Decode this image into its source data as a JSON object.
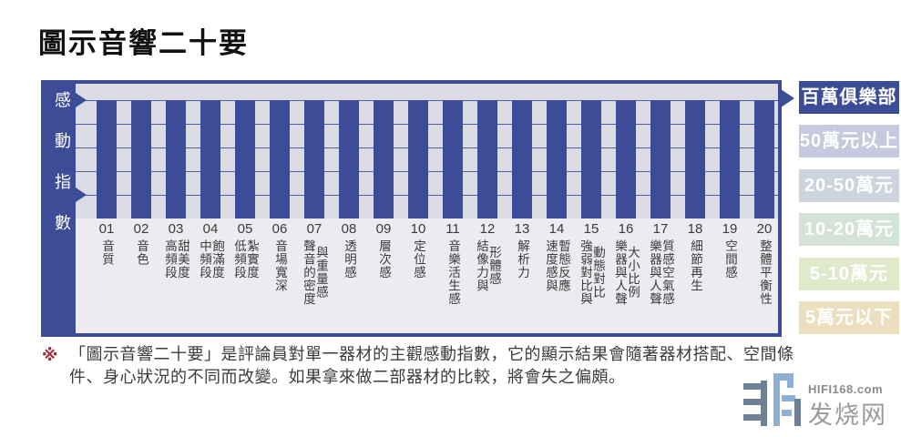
{
  "title": "圖示音響二十要",
  "chart": {
    "axis_label": "感動指數",
    "bars": [
      {
        "num": "01",
        "cols": [
          "音質"
        ]
      },
      {
        "num": "02",
        "cols": [
          "音色"
        ]
      },
      {
        "num": "03",
        "cols": [
          "高頻段",
          "甜美度"
        ]
      },
      {
        "num": "04",
        "cols": [
          "中頻段",
          "飽滿度"
        ]
      },
      {
        "num": "05",
        "cols": [
          "低頻段",
          "紮實度"
        ]
      },
      {
        "num": "06",
        "cols": [
          "音場寬深"
        ]
      },
      {
        "num": "07",
        "cols": [
          "聲音的密度",
          "與重量感"
        ]
      },
      {
        "num": "08",
        "cols": [
          "透明感"
        ]
      },
      {
        "num": "09",
        "cols": [
          "層次感"
        ]
      },
      {
        "num": "10",
        "cols": [
          "定位感"
        ]
      },
      {
        "num": "11",
        "cols": [
          "音樂活生感"
        ]
      },
      {
        "num": "12",
        "cols": [
          "結像力與",
          "形體感"
        ]
      },
      {
        "num": "13",
        "cols": [
          "解析力"
        ]
      },
      {
        "num": "14",
        "cols": [
          "速度感與",
          "暫態反應"
        ]
      },
      {
        "num": "15",
        "cols": [
          "強弱對比與",
          "動態對比"
        ]
      },
      {
        "num": "16",
        "cols": [
          "樂器與人聲",
          "大小比例"
        ]
      },
      {
        "num": "17",
        "cols": [
          "樂器與人聲",
          "質感空氣感"
        ]
      },
      {
        "num": "18",
        "cols": [
          "細節再生"
        ]
      },
      {
        "num": "19",
        "cols": [
          "空間感"
        ]
      },
      {
        "num": "20",
        "cols": [
          "整體平衡性"
        ]
      }
    ]
  },
  "tiers": [
    {
      "label": "百萬俱樂部",
      "bg": "#3c4c96",
      "active": true
    },
    {
      "label": "50萬元以上",
      "bg": "#c7cade",
      "active": false
    },
    {
      "label": "20-50萬元",
      "bg": "#ccd4dd",
      "active": false
    },
    {
      "label": "10-20萬元",
      "bg": "#d3e3d7",
      "active": false
    },
    {
      "label": "5-10萬元",
      "bg": "#e0e9ca",
      "active": false
    },
    {
      "label": "5萬元以下",
      "bg": "#ecdfc0",
      "active": false
    }
  ],
  "footnote": {
    "marker": "※",
    "lines": [
      "「圖示音響二十要」是評論員對單一器材的主觀感動指數，它的顯示結果會隨著器材搭配、空間條",
      "件、身心狀況的不同而改變。如果拿來做二部器材的比較，將會失之偏頗。"
    ]
  },
  "watermark": {
    "site": "HIFI168.com",
    "brand": "发烧网"
  },
  "colors": {
    "navy": "#3c4c96",
    "plot_bg": "#dbdbe3",
    "label_bg": "#ebebf0",
    "grid": "#4f5ea4",
    "footnote_marker": "#a12c3a",
    "text": "#3c3c3c",
    "wm_slate": "#6d8096",
    "wm_blue": "#8fb0d4"
  },
  "chart_data": {
    "type": "bar",
    "title": "圖示音響二十要",
    "ylabel": "感動指數",
    "xlabel": "",
    "categories": [
      "01 音質",
      "02 音色",
      "03 高頻段甜美度",
      "04 中頻段飽滿度",
      "05 低頻段紮實度",
      "06 音場寬深",
      "07 聲音的密度與重量感",
      "08 透明感",
      "09 層次感",
      "10 定位感",
      "11 音樂活生感",
      "12 結像力與形體感",
      "13 解析力",
      "14 速度感與暫態反應",
      "15 強弱對比與動態對比",
      "16 樂器與人聲大小比例",
      "17 樂器與人聲質感空氣感",
      "18 細節再生",
      "19 空間感",
      "20 整體平衡性"
    ],
    "values": [
      5,
      5,
      5,
      5,
      5,
      5,
      5,
      5,
      5,
      5,
      5,
      5,
      5,
      5,
      5,
      5,
      5,
      5,
      5,
      5
    ],
    "ylim": [
      0,
      5
    ],
    "grid": true,
    "legend_position": "right",
    "right_axis_tiers": [
      "百萬俱樂部",
      "50萬元以上",
      "20-50萬元",
      "10-20萬元",
      "5-10萬元",
      "5萬元以下"
    ],
    "highlighted_tier": "百萬俱樂部",
    "note": "all 20 bars reach the top level (百萬俱樂部)"
  }
}
